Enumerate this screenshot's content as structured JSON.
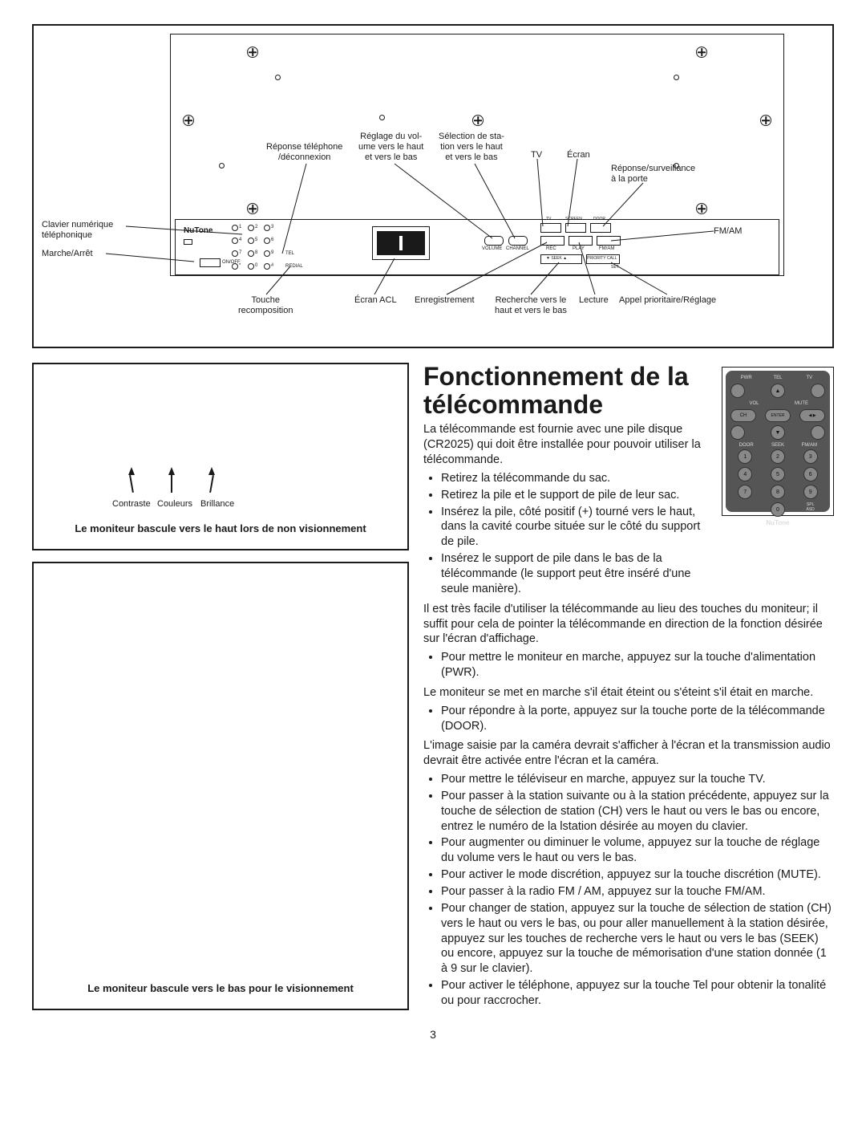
{
  "page_number": "3",
  "diagram": {
    "callouts": {
      "clavier": "Clavier numérique\ntéléphonique",
      "marche": "Marche/Arrêt",
      "reponse_tel": "Réponse téléphone\n/déconnexion",
      "reglage_vol": "Réglage du vol-\nume vers le haut\net vers le bas",
      "selection_sta": "Sélection de sta-\ntion vers le haut\net vers le bas",
      "tv": "TV",
      "ecran": "Écran",
      "reponse_porte": "Réponse/surveillance\nà la porte",
      "fmam": "FM/AM",
      "touche_recomp": "Touche\nrecomposition",
      "ecran_acl": "Écran ACL",
      "enregistrement": "Enregistrement",
      "recherche": "Recherche vers le\nhaut et vers le bas",
      "lecture": "Lecture",
      "appel_prio": "Appel prioritaire/Réglage"
    },
    "panel": {
      "brand": "NuTone",
      "onoff": "ON/OFF",
      "tel": "TEL",
      "redial": "REDIAL",
      "volume": "VOLUME",
      "channel": "CHANNEL",
      "rec": "REC",
      "play": "PLAY",
      "fmam": "FM/AM",
      "tv": "TV",
      "screen": "SCREEN",
      "door": "DOOR",
      "seek": "▼ SEEK ▲",
      "priority": "PRIORITY CALL",
      "set": "SET",
      "keys": [
        "1",
        "2",
        "3",
        "4",
        "5",
        "6",
        "7",
        "8",
        "9",
        "*",
        "0",
        "#"
      ]
    }
  },
  "knob_labels": {
    "contraste": "Contraste",
    "couleurs": "Couleurs",
    "brillance": "Brillance"
  },
  "caption_small": "Le moniteur bascule vers le haut lors de non visionnement",
  "caption_large": "Le moniteur bascule vers le bas pour le visionnement",
  "title": "Fonctionnement de la télécommande",
  "content": {
    "intro": "La télécommande est fournie avec une pile disque (CR2025) qui doit être installée pour pouvoir utiliser la télécommande.",
    "bullets1": [
      "Retirez la télécommande du sac.",
      "Retirez la pile et le support de pile de leur sac.",
      "Insérez la pile, côté positif (+) tourné vers le haut, dans la cavité courbe située sur le côté du support de pile.",
      "Insérez le support de pile dans le bas de la télécommande (le support peut être inséré d'une seule manière)."
    ],
    "para2": "Il est très facile d'utiliser la télécommande au lieu des touches du moniteur; il suffit pour cela de pointer la télécommande en direction de la fonction désirée sur l'écran d'affichage.",
    "bullets2": [
      "Pour mettre le moniteur en marche, appuyez sur la touche d'alimentation (PWR)."
    ],
    "para3": "Le moniteur se met en marche s'il était éteint ou s'éteint s'il était en marche.",
    "bullets3": [
      "Pour répondre à la porte, appuyez sur la touche porte de la télécommande (DOOR)."
    ],
    "para4": "L'image saisie par la caméra devrait s'afficher à l'écran et la transmission audio devrait être activée entre l'écran et la caméra.",
    "bullets4": [
      "Pour mettre le téléviseur en marche, appuyez sur la touche TV.",
      "Pour passer à la station suivante ou à la station précédente, appuyez sur la touche de sélection de station (CH) vers le haut ou vers le bas ou encore, entrez le numéro de la lstation désirée au moyen du clavier.",
      "Pour augmenter ou diminuer le volume, appuyez sur la touche de réglage du volume vers le haut ou vers le bas.",
      "Pour activer le mode discrétion, appuyez sur la touche discrétion (MUTE).",
      "Pour passer à la radio FM / AM, appuyez sur la touche FM/AM.",
      "Pour changer de station, appuyez sur la touche de sélection de station (CH) vers le haut ou vers le bas, ou pour aller manuellement à la station désirée, appuyez sur les touches de recherche vers le haut ou vers le bas (SEEK) ou encore, appuyez sur la touche de mémorisation d'une station donnée (1 à 9 sur le clavier).",
      "Pour activer le téléphone, appuyez sur la touche Tel pour obtenir la tonalité ou pour raccrocher."
    ]
  },
  "remote": {
    "pwr": "PWR",
    "tel": "TEL",
    "tv": "TV",
    "vol": "VOL",
    "mute": "MUTE",
    "ch": "CH",
    "enter": "ENTER",
    "seek": "SEEK",
    "door": "DOOR",
    "fmam": "FM/AM",
    "spl": "SPL",
    "asd": "ASD",
    "brand": "NuTone",
    "keys": [
      "1",
      "2",
      "3",
      "4",
      "5",
      "6",
      "7",
      "8",
      "9",
      "0"
    ]
  }
}
